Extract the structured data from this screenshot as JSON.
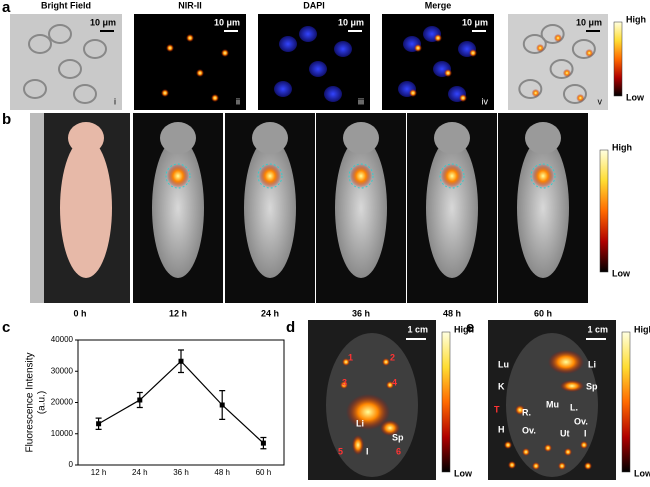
{
  "panel_a": {
    "label": "a",
    "images": [
      {
        "title": "Bright Field",
        "scale": "10 μm",
        "index": "i"
      },
      {
        "title": "NIR-II",
        "scale": "10 μm",
        "index": "ii"
      },
      {
        "title": "DAPI",
        "scale": "10 μm",
        "index": "iii"
      },
      {
        "title": "Merge",
        "scale": "10 μm",
        "index": "iv"
      },
      {
        "scale": "10 μm",
        "index": "v"
      }
    ],
    "colorbar": {
      "high": "High",
      "low": "Low"
    }
  },
  "panel_b": {
    "label": "b",
    "times": [
      "0 h",
      "12 h",
      "24 h",
      "36 h",
      "48 h",
      "60 h"
    ],
    "colorbar": {
      "high": "High",
      "low": "Low"
    }
  },
  "panel_c": {
    "label": "c"
  },
  "chart_data": {
    "type": "line",
    "ylabel": "Fluorescence Intensity",
    "ylabel_unit": "(a.u.)",
    "categories": [
      "12 h",
      "24 h",
      "36 h",
      "48 h",
      "60 h"
    ],
    "values": [
      13200,
      20800,
      33200,
      19200,
      7000
    ],
    "errors": [
      1800,
      2400,
      3600,
      4600,
      1800
    ],
    "ylim": [
      0,
      40000
    ],
    "yticks": [
      0,
      10000,
      20000,
      30000,
      40000
    ],
    "color": "#000000"
  },
  "panel_d": {
    "label": "d",
    "scale": "1 cm",
    "organ_labels": [
      "1",
      "2",
      "3",
      "4",
      "Li",
      "Sp",
      "5",
      "I",
      "6"
    ],
    "colorbar": {
      "high": "High",
      "low": "Low"
    }
  },
  "panel_e": {
    "label": "e",
    "scale": "1 cm",
    "organ_labels": [
      "Lu",
      "Li",
      "K",
      "Sp",
      "Mu",
      "T",
      "R.",
      "L.",
      "Ov.",
      "Ov.",
      "H",
      "Ut",
      "I"
    ],
    "colorbar": {
      "high": "High",
      "low": "Low"
    }
  }
}
